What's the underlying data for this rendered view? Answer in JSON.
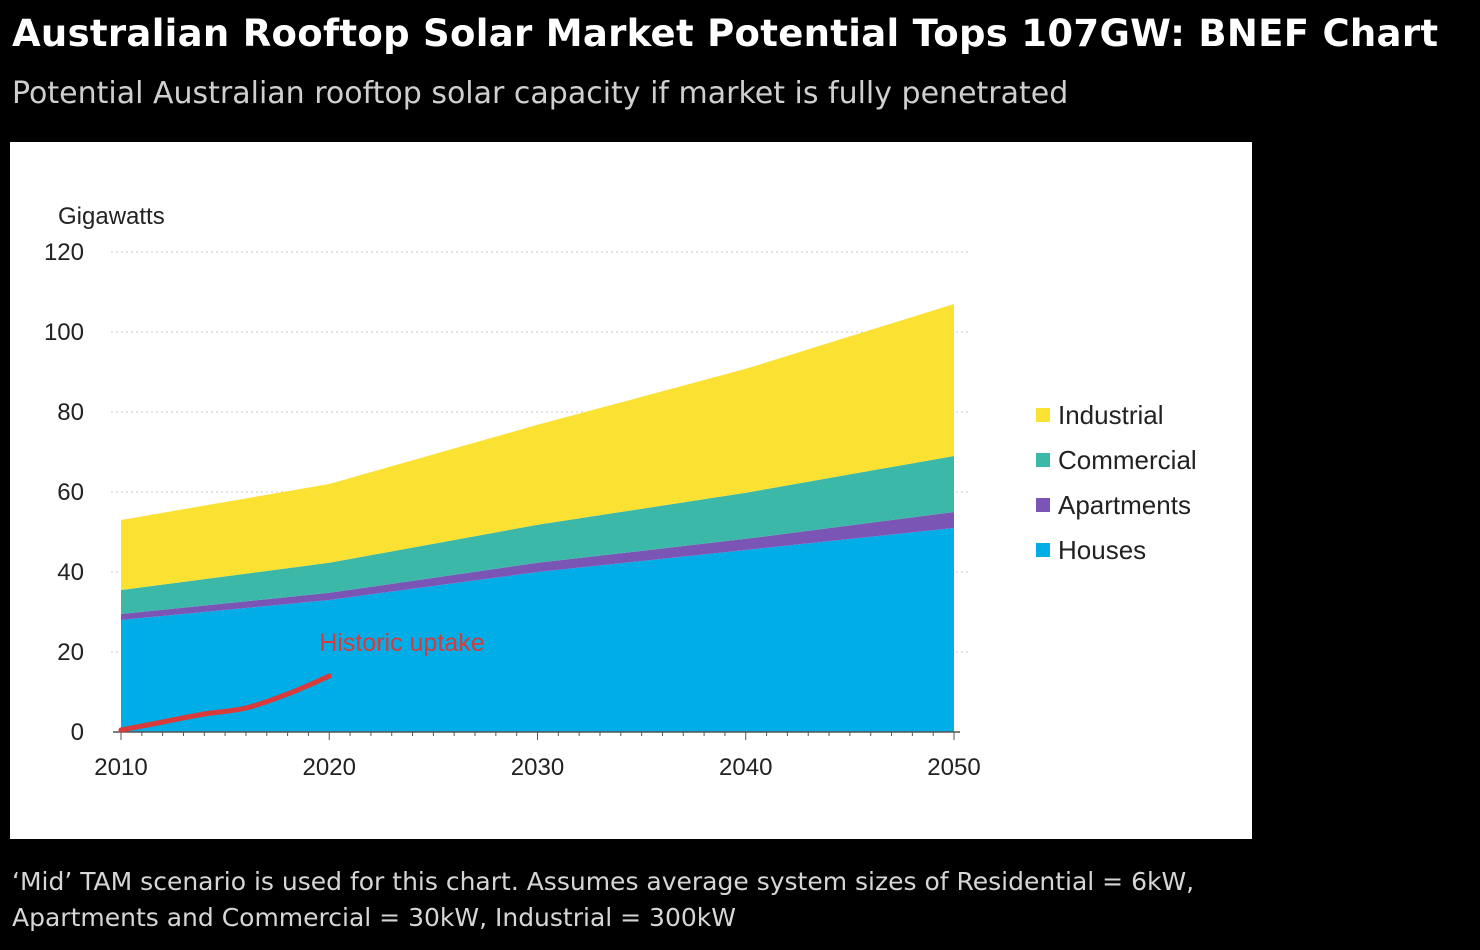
{
  "header": {
    "title": "Australian Rooftop Solar Market Potential Tops 107GW: BNEF Chart",
    "subtitle": "Potential Australian rooftop solar capacity if market is fully penetrated"
  },
  "footnote": {
    "line1": "‘Mid’ TAM scenario is used for this chart. Assumes average system sizes of Residential = 6kW,",
    "line2": "Apartments and Commercial = 30kW, Industrial = 300kW"
  },
  "chart_data": {
    "type": "area",
    "stacked": true,
    "ylabel": "Gigawatts",
    "xlabel": "",
    "ylim": [
      0,
      120
    ],
    "xlim": [
      2010,
      2050
    ],
    "yticks": [
      "0",
      "20",
      "40",
      "60",
      "80",
      "100",
      "120"
    ],
    "xticks": [
      "2010",
      "2020",
      "2030",
      "2040",
      "2050"
    ],
    "grid": "horizontal-dotted",
    "legend_position": "right",
    "x": [
      2010,
      2020,
      2030,
      2040,
      2050
    ],
    "series": [
      {
        "name": "Houses",
        "color": "#00ade6",
        "values": [
          28,
          33,
          40,
          45.5,
          51
        ]
      },
      {
        "name": "Apartments",
        "color": "#7b55b6",
        "values": [
          1.5,
          1.8,
          2.3,
          2.8,
          4.0
        ]
      },
      {
        "name": "Commercial",
        "color": "#3cb8a8",
        "values": [
          6,
          7.5,
          9.5,
          11.5,
          14
        ]
      },
      {
        "name": "Industrial",
        "color": "#fbe232",
        "values": [
          17.5,
          19.7,
          25,
          31,
          38
        ]
      }
    ],
    "legend_order": [
      "Industrial",
      "Commercial",
      "Apartments",
      "Houses"
    ],
    "annotation": {
      "label": "Historic uptake",
      "color": "#d93a3a",
      "points": [
        [
          2010,
          0.5
        ],
        [
          2012,
          2.5
        ],
        [
          2014,
          4.5
        ],
        [
          2016,
          6
        ],
        [
          2018,
          9.5
        ],
        [
          2020,
          14
        ]
      ]
    }
  }
}
